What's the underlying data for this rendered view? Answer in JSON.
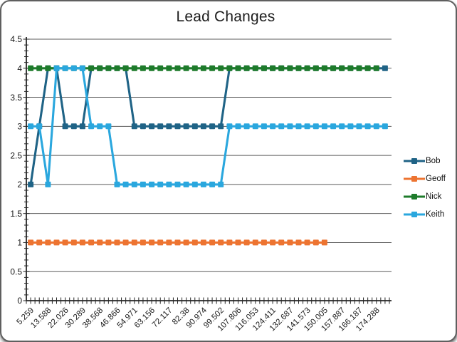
{
  "window": {
    "background_color": "#ffffff",
    "border_style": "rounded gray frame with drop shadow"
  },
  "chart_data": {
    "type": "line",
    "title": "Lead Changes",
    "xlabel": "",
    "ylabel": "",
    "ylim": [
      0,
      4.5
    ],
    "y_ticks": [
      0,
      0.5,
      1,
      1.5,
      2,
      2.5,
      3,
      3.5,
      4,
      4.5
    ],
    "grid": true,
    "legend_position": "right",
    "n_points": 42,
    "x_label_interval": 2,
    "x_tick_labels": [
      "5.259",
      "13.588",
      "22.026",
      "30.289",
      "38.568",
      "46.866",
      "54.971",
      "63.156",
      "72.117",
      "82.38",
      "90.974",
      "99.502",
      "107.806",
      "116.053",
      "124.411",
      "132.687",
      "141.573",
      "150.005",
      "157.887",
      "166.187",
      "174.288"
    ],
    "series": [
      {
        "name": "Bob",
        "color": "#1F6386",
        "values": [
          2,
          3,
          4,
          4,
          3,
          3,
          3,
          4,
          4,
          4,
          4,
          4,
          3,
          3,
          3,
          3,
          3,
          3,
          3,
          3,
          3,
          3,
          3,
          4,
          4,
          4,
          4,
          4,
          4,
          4,
          4,
          4,
          4,
          4,
          4,
          4,
          4,
          4,
          4,
          4,
          4,
          4
        ]
      },
      {
        "name": "Geoff",
        "color": "#ED7431",
        "values": [
          1,
          1,
          1,
          1,
          1,
          1,
          1,
          1,
          1,
          1,
          1,
          1,
          1,
          1,
          1,
          1,
          1,
          1,
          1,
          1,
          1,
          1,
          1,
          1,
          1,
          1,
          1,
          1,
          1,
          1,
          1,
          1,
          1,
          1,
          1,
          null,
          null,
          null,
          null,
          null,
          null,
          null
        ]
      },
      {
        "name": "Nick",
        "color": "#1E7B2B",
        "values": [
          4,
          4,
          4,
          4,
          4,
          4,
          4,
          4,
          4,
          4,
          4,
          4,
          4,
          4,
          4,
          4,
          4,
          4,
          4,
          4,
          4,
          4,
          4,
          4,
          4,
          4,
          4,
          4,
          4,
          4,
          4,
          4,
          4,
          4,
          4,
          4,
          4,
          4,
          4,
          4,
          4,
          null
        ]
      },
      {
        "name": "Keith",
        "color": "#2AA7DE",
        "values": [
          3,
          3,
          2,
          4,
          4,
          4,
          4,
          3,
          3,
          3,
          2,
          2,
          2,
          2,
          2,
          2,
          2,
          2,
          2,
          2,
          2,
          2,
          2,
          3,
          3,
          3,
          3,
          3,
          3,
          3,
          3,
          3,
          3,
          3,
          3,
          3,
          3,
          3,
          3,
          3,
          3,
          3
        ]
      }
    ],
    "axis_color": "#262626",
    "gridline_color": "#5b5b5b",
    "label_color": "#1a1a1a"
  }
}
